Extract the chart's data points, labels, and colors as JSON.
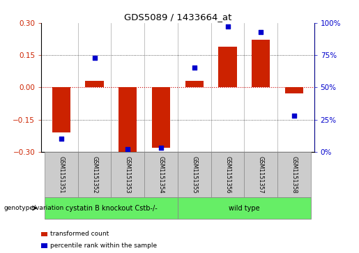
{
  "title": "GDS5089 / 1433664_at",
  "samples": [
    "GSM1151351",
    "GSM1151352",
    "GSM1151353",
    "GSM1151354",
    "GSM1151355",
    "GSM1151356",
    "GSM1151357",
    "GSM1151358"
  ],
  "transformed_count": [
    -0.21,
    0.03,
    -0.3,
    -0.28,
    0.03,
    0.19,
    0.22,
    -0.03
  ],
  "percentile_rank": [
    10,
    73,
    2,
    3,
    65,
    97,
    93,
    28
  ],
  "ylim_left": [
    -0.3,
    0.3
  ],
  "ylim_right": [
    0,
    100
  ],
  "yticks_left": [
    -0.3,
    -0.15,
    0,
    0.15,
    0.3
  ],
  "yticks_right": [
    0,
    25,
    50,
    75,
    100
  ],
  "bar_color": "#cc2200",
  "dot_color": "#0000cc",
  "zero_line_color": "#cc0000",
  "dotted_line_color": "#333333",
  "group1_label": "cystatin B knockout Cstb-/-",
  "group2_label": "wild type",
  "group1_indices": [
    0,
    1,
    2,
    3
  ],
  "group2_indices": [
    4,
    5,
    6,
    7
  ],
  "group_color": "#66ee66",
  "group_label_prefix": "genotype/variation",
  "legend_bar_label": "transformed count",
  "legend_dot_label": "percentile rank within the sample",
  "bar_width": 0.55,
  "background_color": "#ffffff",
  "plot_bg_color": "#ffffff",
  "sample_box_color": "#cccccc",
  "sample_box_edge": "#888888"
}
